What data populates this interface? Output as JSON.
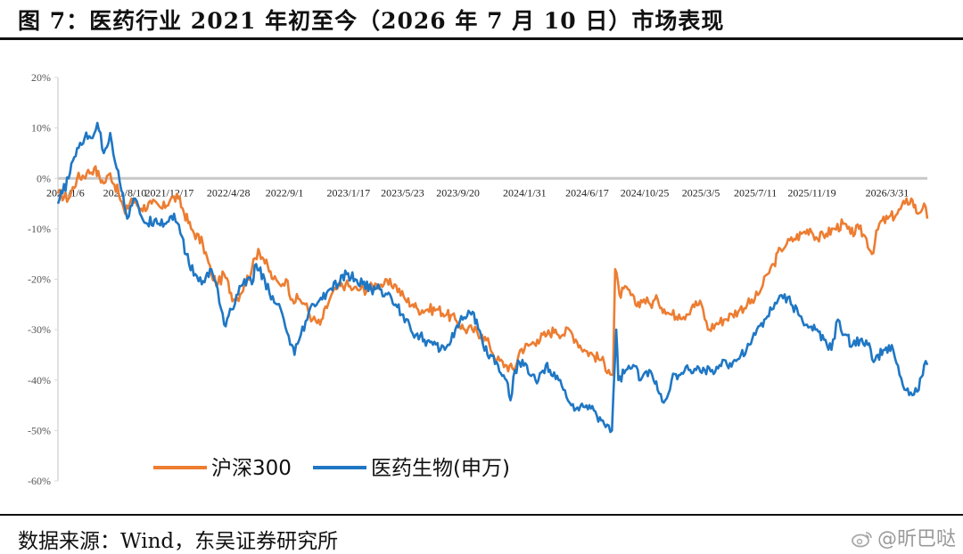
{
  "header": {
    "title": "图 7：医药行业 2021 年初至今（2026 年 7 月 10 日）市场表现"
  },
  "footer": {
    "source": "数据来源：Wind，东吴证券研究所",
    "watermark": "@昕巴哒"
  },
  "colors": {
    "hs300": "#ED7D31",
    "pharma": "#1F77C4",
    "axis": "#d9d9d9",
    "zero_line": "#c8c8c8"
  },
  "chart_data": {
    "type": "line",
    "ylim": [
      -60,
      20
    ],
    "yticks": [
      "20%",
      "10%",
      "0%",
      "-10%",
      "-20%",
      "-30%",
      "-40%",
      "-50%",
      "-60%"
    ],
    "ytick_values": [
      20,
      10,
      0,
      -10,
      -20,
      -30,
      -40,
      -50,
      -60
    ],
    "x_labels": [
      "2021/1/6",
      "2021/8/10",
      "2021/12/17",
      "2022/4/28",
      "2022/9/1",
      "2023/1/17",
      "2023/5/23",
      "2023/9/20",
      "2024/1/31",
      "2024/6/17",
      "2024/10/25",
      "2025/3/5",
      "2025/7/11",
      "2025/11/19",
      "2026/3/31"
    ],
    "x_label_positions": [
      0,
      0.1055,
      0.1846,
      0.2897,
      0.3893,
      0.503,
      0.599,
      0.6975,
      0.8159,
      0.927,
      1.0294,
      1.1292,
      1.226,
      1.3264,
      1.4602
    ],
    "x_range": [
      -0.0133,
      1.5316
    ],
    "legend": [
      "沪深300",
      "医药生物(申万)"
    ],
    "legend_position": "bottom-center",
    "series": [
      {
        "name": "沪深300",
        "points": [
          [
            -0.0133,
            -3
          ],
          [
            0.0056,
            -4
          ],
          [
            0.0208,
            0
          ],
          [
            0.0378,
            1
          ],
          [
            0.0511,
            2
          ],
          [
            0.0681,
            -1
          ],
          [
            0.0795,
            1
          ],
          [
            0.0946,
            -3
          ],
          [
            0.106,
            -7
          ],
          [
            0.1173,
            -4
          ],
          [
            0.1344,
            -6
          ],
          [
            0.1532,
            -5
          ],
          [
            0.1722,
            -6
          ],
          [
            0.1873,
            -4
          ],
          [
            0.2006,
            -4
          ],
          [
            0.2233,
            -10
          ],
          [
            0.2442,
            -13
          ],
          [
            0.2594,
            -19
          ],
          [
            0.2707,
            -21
          ],
          [
            0.2821,
            -19
          ],
          [
            0.2991,
            -24
          ],
          [
            0.3105,
            -23
          ],
          [
            0.318,
            -21
          ],
          [
            0.3313,
            -18
          ],
          [
            0.3427,
            -14
          ],
          [
            0.3521,
            -16
          ],
          [
            0.3692,
            -20
          ],
          [
            0.3805,
            -21
          ],
          [
            0.3919,
            -20
          ],
          [
            0.4033,
            -24
          ],
          [
            0.4165,
            -24
          ],
          [
            0.426,
            -25
          ],
          [
            0.4392,
            -28
          ],
          [
            0.4525,
            -29
          ],
          [
            0.4695,
            -24
          ],
          [
            0.4809,
            -22
          ],
          [
            0.4979,
            -21
          ],
          [
            0.5111,
            -22
          ],
          [
            0.5244,
            -22
          ],
          [
            0.5376,
            -22
          ],
          [
            0.5528,
            -21
          ],
          [
            0.566,
            -21
          ],
          [
            0.5849,
            -21
          ],
          [
            0.6039,
            -24
          ],
          [
            0.6171,
            -25
          ],
          [
            0.6266,
            -26
          ],
          [
            0.6436,
            -26
          ],
          [
            0.6626,
            -26
          ],
          [
            0.6776,
            -27
          ],
          [
            0.6928,
            -28
          ],
          [
            0.7099,
            -30
          ],
          [
            0.7231,
            -30
          ],
          [
            0.7401,
            -31
          ],
          [
            0.7534,
            -33
          ],
          [
            0.7667,
            -36
          ],
          [
            0.7817,
            -37
          ],
          [
            0.7969,
            -38
          ],
          [
            0.8083,
            -34
          ],
          [
            0.8253,
            -33
          ],
          [
            0.8386,
            -32
          ],
          [
            0.8556,
            -31
          ],
          [
            0.8708,
            -30
          ],
          [
            0.884,
            -31
          ],
          [
            0.8954,
            -30
          ],
          [
            0.9068,
            -32
          ],
          [
            0.9219,
            -34
          ],
          [
            0.937,
            -35
          ],
          [
            0.9522,
            -36
          ],
          [
            0.9654,
            -38
          ],
          [
            0.973,
            -39
          ],
          [
            0.9768,
            -18
          ],
          [
            0.9844,
            -23
          ],
          [
            0.9995,
            -22
          ],
          [
            1.0128,
            -25
          ],
          [
            1.0279,
            -24
          ],
          [
            1.0393,
            -25
          ],
          [
            1.0525,
            -24
          ],
          [
            1.064,
            -26
          ],
          [
            1.0753,
            -27
          ],
          [
            1.0905,
            -27
          ],
          [
            1.1037,
            -27
          ],
          [
            1.1151,
            -25
          ],
          [
            1.1302,
            -25
          ],
          [
            1.1416,
            -30
          ],
          [
            1.1548,
            -29
          ],
          [
            1.17,
            -28
          ],
          [
            1.1851,
            -27
          ],
          [
            1.1984,
            -26
          ],
          [
            1.2116,
            -25
          ],
          [
            1.2249,
            -24
          ],
          [
            1.2363,
            -22
          ],
          [
            1.2476,
            -19
          ],
          [
            1.2589,
            -17
          ],
          [
            1.2704,
            -14
          ],
          [
            1.2817,
            -13
          ],
          [
            1.2951,
            -12
          ],
          [
            1.3081,
            -11
          ],
          [
            1.3233,
            -10
          ],
          [
            1.3366,
            -12
          ],
          [
            1.3517,
            -11
          ],
          [
            1.3669,
            -10
          ],
          [
            1.3819,
            -9
          ],
          [
            1.3952,
            -11
          ],
          [
            1.4103,
            -10
          ],
          [
            1.4236,
            -12
          ],
          [
            1.4331,
            -15
          ],
          [
            1.4463,
            -9
          ],
          [
            1.4614,
            -8
          ],
          [
            1.4784,
            -7
          ],
          [
            1.4917,
            -5
          ],
          [
            1.503,
            -4
          ],
          [
            1.5145,
            -7
          ],
          [
            1.5259,
            -5
          ],
          [
            1.5316,
            -8
          ]
        ]
      },
      {
        "name": "医药生物(申万)",
        "points": [
          [
            -0.0133,
            -5
          ],
          [
            0.0056,
            0
          ],
          [
            0.0208,
            6
          ],
          [
            0.034,
            8
          ],
          [
            0.0454,
            8
          ],
          [
            0.0568,
            11
          ],
          [
            0.0681,
            5
          ],
          [
            0.0795,
            9
          ],
          [
            0.0909,
            2
          ],
          [
            0.1022,
            -3
          ],
          [
            0.1098,
            -8
          ],
          [
            0.1211,
            -4
          ],
          [
            0.1325,
            -7
          ],
          [
            0.1457,
            -9
          ],
          [
            0.1608,
            -8
          ],
          [
            0.176,
            -9
          ],
          [
            0.193,
            -7
          ],
          [
            0.2044,
            -11
          ],
          [
            0.2196,
            -17
          ],
          [
            0.2309,
            -19
          ],
          [
            0.2423,
            -21
          ],
          [
            0.2593,
            -18
          ],
          [
            0.2707,
            -22
          ],
          [
            0.2821,
            -29
          ],
          [
            0.2953,
            -26
          ],
          [
            0.3067,
            -23
          ],
          [
            0.318,
            -20
          ],
          [
            0.3313,
            -21
          ],
          [
            0.3389,
            -17
          ],
          [
            0.354,
            -20
          ],
          [
            0.3654,
            -24
          ],
          [
            0.3767,
            -25
          ],
          [
            0.3881,
            -28
          ],
          [
            0.3995,
            -33
          ],
          [
            0.4071,
            -35
          ],
          [
            0.4184,
            -31
          ],
          [
            0.4298,
            -28
          ],
          [
            0.4411,
            -25
          ],
          [
            0.4563,
            -24
          ],
          [
            0.4695,
            -22
          ],
          [
            0.4847,
            -21
          ],
          [
            0.4998,
            -19
          ],
          [
            0.5149,
            -20
          ],
          [
            0.5282,
            -21
          ],
          [
            0.5433,
            -22
          ],
          [
            0.5585,
            -22
          ],
          [
            0.5717,
            -23
          ],
          [
            0.5868,
            -25
          ],
          [
            0.6,
            -27
          ],
          [
            0.6114,
            -29
          ],
          [
            0.6228,
            -31
          ],
          [
            0.6379,
            -32
          ],
          [
            0.6531,
            -33
          ],
          [
            0.6663,
            -34
          ],
          [
            0.6796,
            -33
          ],
          [
            0.6928,
            -30
          ],
          [
            0.7061,
            -28
          ],
          [
            0.7212,
            -27
          ],
          [
            0.7307,
            -28
          ],
          [
            0.7421,
            -33
          ],
          [
            0.7553,
            -35
          ],
          [
            0.7686,
            -37
          ],
          [
            0.7837,
            -40
          ],
          [
            0.7908,
            -44
          ],
          [
            0.7988,
            -38
          ],
          [
            0.812,
            -36
          ],
          [
            0.8253,
            -39
          ],
          [
            0.8404,
            -40
          ],
          [
            0.8537,
            -37
          ],
          [
            0.8632,
            -39
          ],
          [
            0.8764,
            -40
          ],
          [
            0.8877,
            -42
          ],
          [
            0.8991,
            -45
          ],
          [
            0.9124,
            -46
          ],
          [
            0.9257,
            -45
          ],
          [
            0.939,
            -46
          ],
          [
            0.9522,
            -48
          ],
          [
            0.9654,
            -49
          ],
          [
            0.9711,
            -50
          ],
          [
            0.9787,
            -30
          ],
          [
            0.9825,
            -40
          ],
          [
            0.9957,
            -38
          ],
          [
            1.009,
            -37
          ],
          [
            1.0222,
            -40
          ],
          [
            1.0374,
            -38
          ],
          [
            1.0525,
            -42
          ],
          [
            1.0658,
            -44
          ],
          [
            1.0772,
            -40
          ],
          [
            1.0923,
            -39
          ],
          [
            1.1075,
            -38
          ],
          [
            1.1207,
            -38
          ],
          [
            1.136,
            -38
          ],
          [
            1.1492,
            -38
          ],
          [
            1.1624,
            -37
          ],
          [
            1.1757,
            -37
          ],
          [
            1.189,
            -36
          ],
          [
            1.2003,
            -35
          ],
          [
            1.2154,
            -33
          ],
          [
            1.2287,
            -30
          ],
          [
            1.242,
            -28
          ],
          [
            1.2552,
            -26
          ],
          [
            1.2666,
            -24
          ],
          [
            1.278,
            -23
          ],
          [
            1.2893,
            -25
          ],
          [
            1.3025,
            -27
          ],
          [
            1.3177,
            -29
          ],
          [
            1.3328,
            -30
          ],
          [
            1.348,
            -32
          ],
          [
            1.3612,
            -34
          ],
          [
            1.3726,
            -28
          ],
          [
            1.3839,
            -31
          ],
          [
            1.399,
            -33
          ],
          [
            1.4123,
            -32
          ],
          [
            1.4255,
            -33
          ],
          [
            1.4388,
            -36
          ],
          [
            1.4558,
            -34
          ],
          [
            1.4709,
            -34
          ],
          [
            1.4823,
            -39
          ],
          [
            1.4937,
            -42
          ],
          [
            1.505,
            -43
          ],
          [
            1.5163,
            -42
          ],
          [
            1.5259,
            -37
          ],
          [
            1.5316,
            -37
          ]
        ]
      }
    ]
  }
}
